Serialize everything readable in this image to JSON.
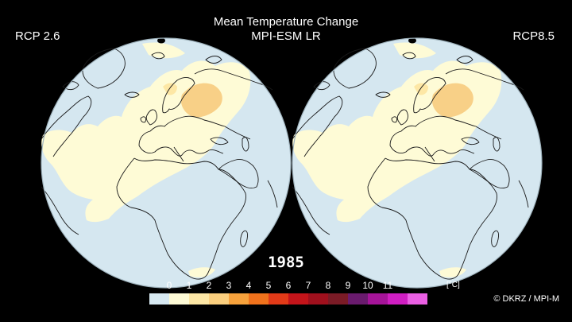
{
  "title": {
    "line1": "Mean Temperature Change",
    "line2": "MPI-ESM LR"
  },
  "scenarios": {
    "left": "RCP 2.6",
    "right": "RCP8.5"
  },
  "year": "1985",
  "colorbar": {
    "tick_labels": [
      "0",
      "1",
      "2",
      "3",
      "4",
      "5",
      "6",
      "7",
      "8",
      "9",
      "10",
      "11"
    ],
    "unit": "[°C]",
    "colors": [
      "#d7e9f2",
      "#fefbd6",
      "#fde7a5",
      "#fbcf7e",
      "#f7a23c",
      "#f0721c",
      "#e23a18",
      "#c4141a",
      "#a0101d",
      "#7b1b26",
      "#6a1b6e",
      "#a51499",
      "#d01ec2",
      "#ea5fe3"
    ]
  },
  "map_colors": {
    "ocean_background": "#d5e7f0",
    "anomaly_light": "#fefbd6",
    "anomaly_medium": "#fde7a5",
    "anomaly_strong": "#f8d087",
    "coastline": "#1a1a1a"
  },
  "credit": "© DKRZ / MPI-M"
}
